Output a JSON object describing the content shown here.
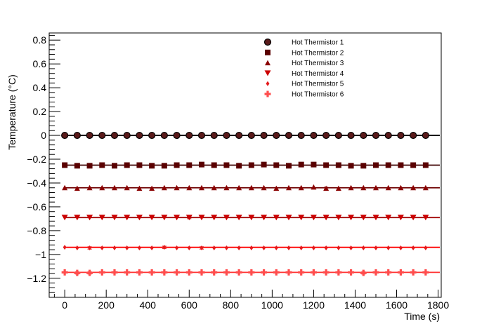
{
  "chart_data": {
    "type": "scatter",
    "xlabel": "Time (s)",
    "ylabel": "Temperature (°C)",
    "xlim": [
      -75,
      1815
    ],
    "ylim": [
      -1.36,
      0.86
    ],
    "xticks": [
      0,
      200,
      400,
      600,
      800,
      1000,
      1200,
      1400,
      1600,
      1800
    ],
    "xtick_labels": [
      "0",
      "200",
      "400",
      "600",
      "800",
      "1000",
      "1200",
      "1400",
      "1600",
      "1800"
    ],
    "yticks": [
      0.8,
      0.6,
      0.4,
      0.2,
      0,
      -0.2,
      -0.4,
      -0.6,
      -0.8,
      -1,
      -1.2
    ],
    "ytick_labels": [
      "0.8",
      "0.6",
      "0.4",
      "0.2",
      "0",
      "−0.2",
      "−0.4",
      "−0.6",
      "−0.8",
      "−1",
      "−1.2"
    ],
    "grid": false,
    "legend_position": "top-right",
    "x": [
      0,
      60,
      120,
      180,
      240,
      300,
      360,
      420,
      480,
      540,
      600,
      660,
      720,
      780,
      840,
      900,
      960,
      1020,
      1080,
      1140,
      1200,
      1260,
      1320,
      1380,
      1440,
      1500,
      1560,
      1620,
      1680,
      1740
    ],
    "series": [
      {
        "name": "Hot Thermistor 1",
        "marker": "circle",
        "color": "#000000",
        "fill": "#5a1a1a",
        "line_color": "#000000",
        "fit": 0.0,
        "values": [
          0,
          0,
          0,
          0,
          0,
          0,
          0,
          0,
          0,
          0,
          0,
          0,
          0,
          0,
          0,
          0,
          0,
          0,
          0,
          0,
          0,
          0,
          0,
          0,
          0,
          0,
          0,
          0,
          0,
          0
        ],
        "errors": [
          0,
          0,
          0,
          0,
          0,
          0,
          0,
          0,
          0,
          0,
          0,
          0,
          0,
          0,
          0,
          0,
          0,
          0,
          0,
          0,
          0,
          0,
          0,
          0,
          0,
          0,
          0,
          0,
          0,
          0
        ]
      },
      {
        "name": "Hot Thermistor 2",
        "marker": "square",
        "color": "#5a0000",
        "fill": "#5a0000",
        "line_color": "#3d0000",
        "fit": -0.25,
        "values": [
          -0.25,
          -0.255,
          -0.255,
          -0.25,
          -0.255,
          -0.25,
          -0.25,
          -0.255,
          -0.255,
          -0.25,
          -0.25,
          -0.245,
          -0.25,
          -0.25,
          -0.255,
          -0.25,
          -0.245,
          -0.25,
          -0.255,
          -0.245,
          -0.245,
          -0.25,
          -0.25,
          -0.255,
          -0.255,
          -0.25,
          -0.25,
          -0.25,
          -0.25,
          -0.25
        ],
        "errors": [
          0,
          0,
          0.01,
          0,
          0,
          0,
          0.01,
          0,
          0,
          0,
          0.01,
          0,
          0,
          0,
          0,
          0,
          0,
          0.01,
          0,
          0,
          0,
          0,
          0,
          0,
          0,
          0,
          0,
          0,
          0,
          0
        ]
      },
      {
        "name": "Hot Thermistor 3",
        "marker": "triangle-up",
        "color": "#8b0000",
        "fill": "#8b0000",
        "line_color": "#6e0000",
        "fit": -0.44,
        "values": [
          -0.44,
          -0.445,
          -0.44,
          -0.44,
          -0.44,
          -0.44,
          -0.445,
          -0.445,
          -0.44,
          -0.44,
          -0.44,
          -0.44,
          -0.44,
          -0.44,
          -0.44,
          -0.44,
          -0.44,
          -0.445,
          -0.44,
          -0.44,
          -0.435,
          -0.445,
          -0.445,
          -0.44,
          -0.44,
          -0.44,
          -0.44,
          -0.44,
          -0.44,
          -0.44
        ],
        "errors": [
          0,
          0,
          0,
          0,
          0,
          0,
          0,
          0,
          0,
          0,
          0,
          0,
          0,
          0,
          0,
          0,
          0,
          0,
          0,
          0,
          0,
          0.01,
          0,
          0,
          0,
          0,
          0,
          0,
          0,
          0
        ]
      },
      {
        "name": "Hot Thermistor 4",
        "marker": "triangle-down",
        "color": "#cc0000",
        "fill": "#cc0000",
        "line_color": "#a00000",
        "fit": -0.69,
        "values": [
          -0.69,
          -0.69,
          -0.69,
          -0.69,
          -0.69,
          -0.69,
          -0.69,
          -0.69,
          -0.69,
          -0.69,
          -0.69,
          -0.69,
          -0.69,
          -0.69,
          -0.69,
          -0.69,
          -0.69,
          -0.69,
          -0.69,
          -0.69,
          -0.69,
          -0.69,
          -0.69,
          -0.69,
          -0.69,
          -0.69,
          -0.69,
          -0.69,
          -0.69,
          -0.69
        ],
        "errors": [
          0,
          0,
          0,
          0,
          0,
          0,
          0,
          0,
          0,
          0,
          0.01,
          0,
          0,
          0,
          0,
          0,
          0,
          0,
          0,
          0,
          0,
          0,
          0,
          0,
          0,
          0,
          0,
          0,
          0,
          0
        ]
      },
      {
        "name": "Hot Thermistor 5",
        "marker": "diamond",
        "color": "#e41a1c",
        "fill": "#e41a1c",
        "line_color": "#ff0000",
        "fit": -0.94,
        "values": [
          -0.94,
          -0.945,
          -0.945,
          -0.945,
          -0.945,
          -0.945,
          -0.945,
          -0.945,
          -0.94,
          -0.945,
          -0.945,
          -0.945,
          -0.945,
          -0.945,
          -0.945,
          -0.945,
          -0.945,
          -0.945,
          -0.945,
          -0.945,
          -0.945,
          -0.945,
          -0.945,
          -0.945,
          -0.945,
          -0.945,
          -0.945,
          -0.945,
          -0.945,
          -0.945
        ],
        "errors": [
          0,
          0,
          0.01,
          0,
          0,
          0,
          0,
          0,
          0.01,
          0,
          0,
          0.01,
          0,
          0,
          0,
          0,
          0,
          0,
          0,
          0,
          0,
          0,
          0,
          0,
          0,
          0,
          0,
          0,
          0,
          0
        ]
      },
      {
        "name": "Hot Thermistor 6",
        "marker": "cross",
        "color": "#ff4d4d",
        "fill": "#ff4d4d",
        "line_color": "#ff3333",
        "fit": -1.15,
        "values": [
          -1.15,
          -1.155,
          -1.155,
          -1.15,
          -1.15,
          -1.15,
          -1.15,
          -1.15,
          -1.15,
          -1.15,
          -1.15,
          -1.15,
          -1.15,
          -1.15,
          -1.15,
          -1.15,
          -1.15,
          -1.15,
          -1.15,
          -1.15,
          -1.15,
          -1.15,
          -1.15,
          -1.15,
          -1.155,
          -1.15,
          -1.15,
          -1.15,
          -1.15,
          -1.15
        ],
        "errors": [
          0,
          0.01,
          0.01,
          0,
          0,
          0,
          0,
          0,
          0,
          0,
          0,
          0,
          0,
          0,
          0,
          0,
          0,
          0,
          0,
          0,
          0,
          0,
          0,
          0,
          0.01,
          0,
          0,
          0,
          0,
          0
        ]
      }
    ]
  }
}
